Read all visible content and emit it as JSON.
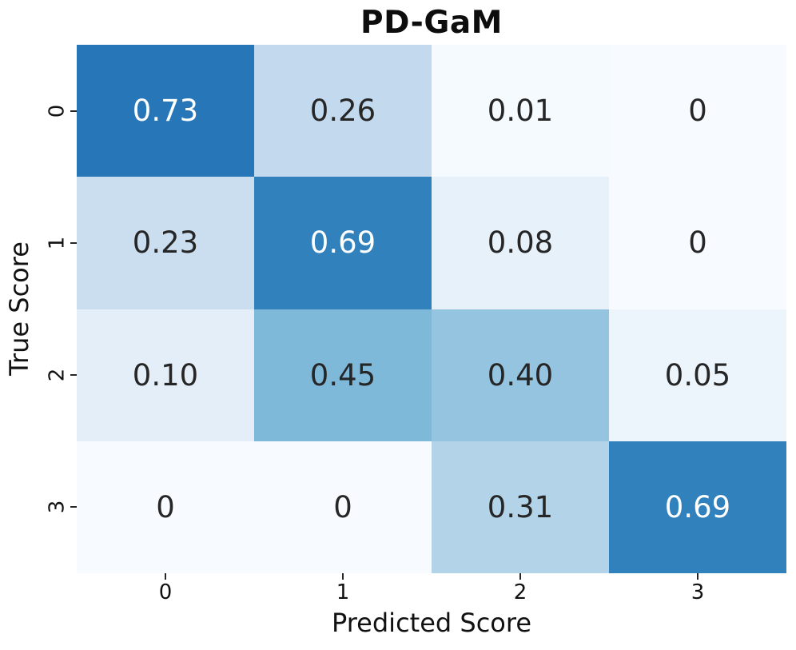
{
  "chart_data": {
    "type": "heatmap",
    "title": "PD-GaM",
    "xlabel": "Predicted Score",
    "ylabel": "True Score",
    "x_ticklabels": [
      "0",
      "1",
      "2",
      "3"
    ],
    "y_ticklabels": [
      "0",
      "1",
      "2",
      "3"
    ],
    "colormap": "Blues",
    "vmin": 0,
    "vmax": 1,
    "legend": "none",
    "grid": false,
    "matrix": [
      [
        0.73,
        0.26,
        0.01,
        0
      ],
      [
        0.23,
        0.69,
        0.08,
        0
      ],
      [
        0.1,
        0.45,
        0.4,
        0.05
      ],
      [
        0,
        0,
        0.31,
        0.69
      ]
    ],
    "cell_labels": [
      [
        "0.73",
        "0.26",
        "0.01",
        "0"
      ],
      [
        "0.23",
        "0.69",
        "0.08",
        "0"
      ],
      [
        "0.10",
        "0.45",
        "0.40",
        "0.05"
      ],
      [
        "0",
        "0",
        "0.31",
        "0.69"
      ]
    ],
    "cell_colors": [
      [
        "#2676b8",
        "#c3daee",
        "#f5fafe",
        "#f7fbff"
      ],
      [
        "#cadef0",
        "#3181bd",
        "#e7f1fa",
        "#f7fbff"
      ],
      [
        "#e3eef9",
        "#7fb9da",
        "#94c4df",
        "#edf5fc"
      ],
      [
        "#f7fbff",
        "#f7fbff",
        "#b3d3e8",
        "#3181bd"
      ]
    ],
    "cell_text_colors": [
      [
        "#ffffff",
        "#262626",
        "#262626",
        "#262626"
      ],
      [
        "#262626",
        "#ffffff",
        "#262626",
        "#262626"
      ],
      [
        "#262626",
        "#262626",
        "#262626",
        "#262626"
      ],
      [
        "#262626",
        "#262626",
        "#262626",
        "#ffffff"
      ]
    ]
  }
}
